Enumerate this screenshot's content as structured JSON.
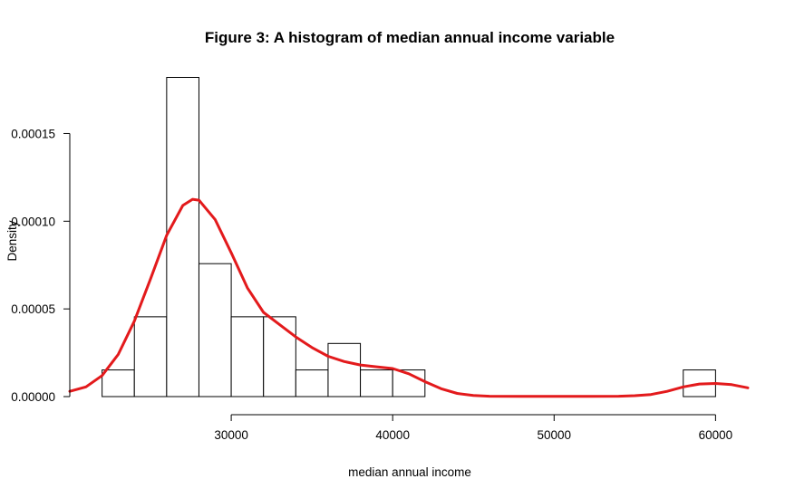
{
  "chart_data": {
    "type": "bar",
    "title": "Figure 3: A histogram of median annual income variable",
    "xlabel": "median annual income",
    "ylabel": "Density",
    "xlim": [
      20000,
      62000
    ],
    "ylim": [
      0,
      0.00019
    ],
    "x_ticks": [
      30000,
      40000,
      50000,
      60000
    ],
    "x_tick_labels": [
      "30000",
      "40000",
      "50000",
      "60000"
    ],
    "y_ticks": [
      0,
      5e-05,
      0.0001,
      0.00015
    ],
    "y_tick_labels": [
      "0.00000",
      "0.00005",
      "0.00010",
      "0.00015"
    ],
    "bins": [
      {
        "x0": 22000,
        "x1": 24000,
        "density": 1.52e-05
      },
      {
        "x0": 24000,
        "x1": 26000,
        "density": 4.55e-05
      },
      {
        "x0": 26000,
        "x1": 28000,
        "density": 0.000182
      },
      {
        "x0": 28000,
        "x1": 30000,
        "density": 7.58e-05
      },
      {
        "x0": 30000,
        "x1": 32000,
        "density": 4.55e-05
      },
      {
        "x0": 32000,
        "x1": 34000,
        "density": 4.55e-05
      },
      {
        "x0": 34000,
        "x1": 36000,
        "density": 1.52e-05
      },
      {
        "x0": 36000,
        "x1": 38000,
        "density": 3.03e-05
      },
      {
        "x0": 38000,
        "x1": 40000,
        "density": 1.52e-05
      },
      {
        "x0": 40000,
        "x1": 42000,
        "density": 1.52e-05
      },
      {
        "x0": 58000,
        "x1": 60000,
        "density": 1.52e-05
      }
    ],
    "density_curve": {
      "color": "#e31a1c",
      "x": [
        20000,
        21000,
        22000,
        23000,
        24000,
        25000,
        26000,
        27000,
        27600,
        28000,
        29000,
        30000,
        31000,
        32000,
        33000,
        34000,
        35000,
        36000,
        37000,
        38000,
        39000,
        40000,
        41000,
        42000,
        43000,
        44000,
        45000,
        46000,
        48000,
        50000,
        52000,
        54000,
        55000,
        56000,
        57000,
        58000,
        59000,
        60000,
        61000,
        62000
      ],
      "y": [
        3e-06,
        5.5e-06,
        1.2e-05,
        2.4e-05,
        4.3e-05,
        6.7e-05,
        9.2e-05,
        0.000109,
        0.0001125,
        0.000112,
        0.000101,
        8.2e-05,
        6.2e-05,
        4.8e-05,
        4.1e-05,
        3.4e-05,
        2.8e-05,
        2.3e-05,
        2e-05,
        1.8e-05,
        1.7e-05,
        1.6e-05,
        1.3e-05,
        8.5e-06,
        4.5e-06,
        1.8e-06,
        6e-07,
        2e-07,
        1e-07,
        1e-07,
        1e-07,
        2e-07,
        5e-07,
        1.2e-06,
        3e-06,
        5.5e-06,
        7.2e-06,
        7.5e-06,
        6.8e-06,
        5e-06
      ]
    },
    "grid": false,
    "legend": "none"
  }
}
